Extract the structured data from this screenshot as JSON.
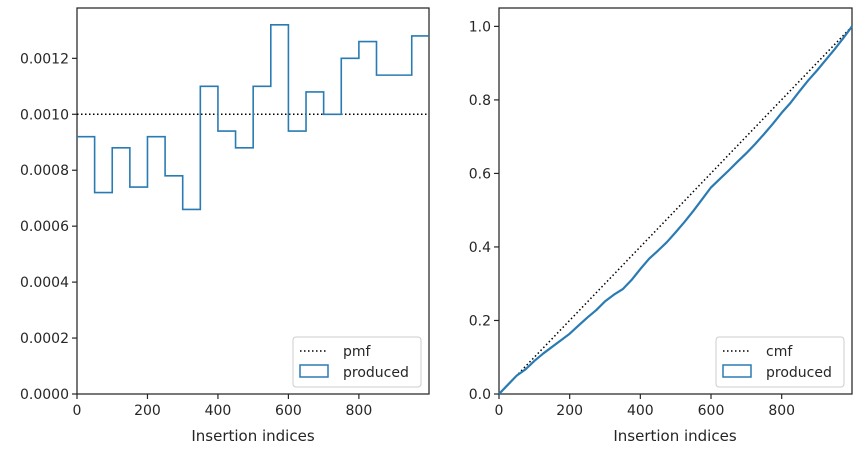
{
  "colors": {
    "produced": "#2a7bb3",
    "reference": "#000000",
    "axes": "#262626",
    "legend_border": "#cccccc"
  },
  "chart_data": [
    {
      "type": "line",
      "draw": "step-histogram",
      "xlabel": "Insertion indices",
      "ylabel": "",
      "xlim": [
        0,
        999
      ],
      "ylim": [
        0,
        0.00138
      ],
      "xticks": [
        0,
        200,
        400,
        600,
        800
      ],
      "xtick_labels": [
        "0",
        "200",
        "400",
        "600",
        "800"
      ],
      "yticks": [
        0,
        0.0002,
        0.0004,
        0.0006,
        0.0008,
        0.001,
        0.0012
      ],
      "ytick_labels": [
        "0.0000",
        "0.0002",
        "0.0004",
        "0.0006",
        "0.0008",
        "0.0010",
        "0.0012"
      ],
      "grid": false,
      "legend_position": "lower-right",
      "reference": {
        "name": "pmf",
        "style": "dotted",
        "y": 0.001
      },
      "series": [
        {
          "name": "produced",
          "bin_edges": [
            0,
            50,
            100,
            150,
            200,
            250,
            300,
            350,
            400,
            450,
            500,
            550,
            600,
            650,
            700,
            750,
            800,
            850,
            950,
            999
          ],
          "values": [
            0.00092,
            0.00072,
            0.00088,
            0.00074,
            0.00092,
            0.00078,
            0.00066,
            0.0011,
            0.00094,
            0.00088,
            0.0011,
            0.00132,
            0.00094,
            0.00108,
            0.001,
            0.0012,
            0.00126,
            0.00114,
            0.00128
          ]
        }
      ]
    },
    {
      "type": "line",
      "draw": "step-cdf",
      "xlabel": "Insertion indices",
      "ylabel": "",
      "xlim": [
        0,
        999
      ],
      "ylim": [
        0,
        1.05
      ],
      "xticks": [
        0,
        200,
        400,
        600,
        800
      ],
      "xtick_labels": [
        "0",
        "200",
        "400",
        "600",
        "800"
      ],
      "yticks": [
        0,
        0.2,
        0.4,
        0.6,
        0.8,
        1.0
      ],
      "ytick_labels": [
        "0.0",
        "0.2",
        "0.4",
        "0.6",
        "0.8",
        "1.0"
      ],
      "grid": false,
      "legend_position": "lower-right",
      "reference": {
        "name": "cmf",
        "style": "dotted",
        "points": [
          [
            0,
            0
          ],
          [
            999,
            1
          ]
        ]
      },
      "series": [
        {
          "name": "produced",
          "x": [
            0,
            25,
            50,
            75,
            100,
            125,
            150,
            175,
            200,
            225,
            250,
            275,
            300,
            325,
            350,
            375,
            400,
            425,
            450,
            475,
            500,
            525,
            550,
            575,
            600,
            625,
            650,
            675,
            700,
            725,
            750,
            775,
            800,
            825,
            850,
            875,
            900,
            925,
            950,
            975,
            999
          ],
          "y": [
            0,
            0.025,
            0.05,
            0.067,
            0.09,
            0.11,
            0.128,
            0.146,
            0.164,
            0.186,
            0.208,
            0.228,
            0.252,
            0.27,
            0.285,
            0.31,
            0.34,
            0.368,
            0.39,
            0.413,
            0.44,
            0.468,
            0.498,
            0.53,
            0.562,
            0.585,
            0.608,
            0.632,
            0.655,
            0.68,
            0.707,
            0.735,
            0.765,
            0.792,
            0.823,
            0.853,
            0.88,
            0.909,
            0.938,
            0.969,
            1.0
          ]
        }
      ]
    }
  ]
}
